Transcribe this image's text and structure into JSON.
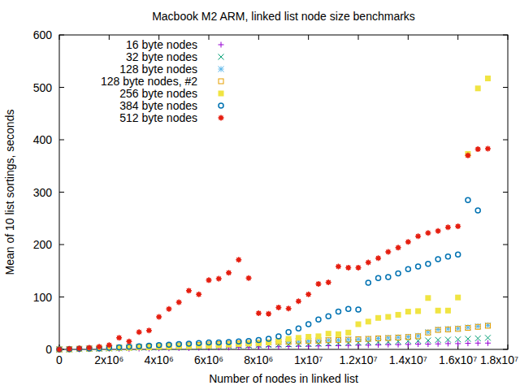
{
  "chart_data": {
    "type": "scatter",
    "title": "Macbook M2 ARM, linked list node size benchmarks",
    "x_label": "Number of nodes in linked list",
    "y_label": "Mean of 10 list sortings, seconds",
    "xlim": [
      0,
      18000000
    ],
    "ylim": [
      0,
      600
    ],
    "xticks": [
      0,
      {
        "value": 2000000,
        "label": "2x10⁶"
      },
      {
        "value": 4000000,
        "label": "4x10⁶"
      },
      {
        "value": 6000000,
        "label": "6x10⁶"
      },
      {
        "value": 8000000,
        "label": "8x10⁶"
      },
      {
        "value": 10000000,
        "label": "1x10⁷"
      },
      {
        "value": 12000000,
        "label": "1.2x10⁷"
      },
      {
        "value": 14000000,
        "label": "1.4x10⁷"
      },
      {
        "value": 16000000,
        "label": "1.6x10⁷"
      },
      {
        "value": 18000000,
        "label": "1.8x10⁷"
      }
    ],
    "yticks": [
      0,
      100,
      200,
      300,
      400,
      500,
      600
    ],
    "grid": false,
    "legend": "top-left",
    "x": [
      0,
      400000,
      800000,
      1200000,
      1600000,
      2000000,
      2400000,
      2800000,
      3200000,
      3600000,
      4000000,
      4400000,
      4800000,
      5200000,
      5600000,
      6000000,
      6400000,
      6800000,
      7200000,
      7600000,
      8000000,
      8400000,
      8800000,
      9200000,
      9600000,
      10000000,
      10400000,
      10800000,
      11200000,
      11600000,
      12000000,
      12400000,
      12800000,
      13200000,
      13600000,
      14000000,
      14400000,
      14800000,
      15200000,
      15600000,
      16000000,
      16400000,
      16800000,
      17200000
    ],
    "series": [
      {
        "name": "16 byte nodes",
        "color": "#9400d3",
        "marker": "plus",
        "values": [
          0,
          0,
          0,
          0.5,
          0.5,
          1,
          1,
          1,
          1.5,
          1.5,
          2,
          2,
          2.5,
          2.5,
          3,
          3,
          3.5,
          3.5,
          4,
          4,
          4.5,
          5,
          5,
          5.5,
          6,
          6,
          6.5,
          7,
          7,
          7.5,
          8,
          8,
          8.5,
          9,
          9,
          9.5,
          10,
          10,
          10.5,
          11,
          11,
          11.5,
          12,
          12
        ]
      },
      {
        "name": "32 byte nodes",
        "color": "#009e73",
        "marker": "cross",
        "values": [
          0,
          0,
          0.5,
          1,
          1,
          1.5,
          2,
          2.5,
          3,
          3,
          3.5,
          4,
          4.5,
          5,
          5,
          5.5,
          6,
          6.5,
          7,
          7.5,
          8,
          8.5,
          9,
          9.5,
          10,
          10.5,
          11,
          11.5,
          12,
          12.5,
          13,
          13.5,
          14,
          14.5,
          15,
          16,
          16.5,
          17,
          18,
          18.5,
          19,
          20,
          21,
          22
        ]
      },
      {
        "name": "128 byte nodes",
        "color": "#56b4e9",
        "marker": "star",
        "values": [
          0,
          0.5,
          1,
          1.5,
          2,
          3,
          3.5,
          4,
          5,
          5.5,
          6,
          7,
          7.5,
          8,
          9,
          9.5,
          10,
          11,
          11.5,
          12,
          13,
          13.5,
          14,
          15,
          15.5,
          16,
          17,
          17.5,
          18,
          19,
          19.5,
          20,
          21,
          22,
          23,
          24,
          26,
          33,
          38,
          39,
          40,
          42,
          44,
          46
        ]
      },
      {
        "name": "128 byte nodes, #2",
        "color": "#e69f00",
        "marker": "square-open",
        "values": [
          0,
          0.5,
          1,
          1.5,
          2,
          2.5,
          3.5,
          4,
          4.5,
          5.5,
          6,
          6.5,
          7.5,
          8,
          8.5,
          9.5,
          10,
          10.5,
          11.5,
          12,
          12.5,
          13.5,
          14,
          14.5,
          15.5,
          16,
          16.5,
          17.5,
          18,
          18.5,
          19.5,
          20,
          21,
          21.5,
          22.5,
          23.5,
          25,
          32,
          37,
          38,
          39,
          41,
          43,
          45
        ]
      },
      {
        "name": "256 byte nodes",
        "color": "#f0e442",
        "marker": "square",
        "values": [
          0,
          0,
          1,
          1,
          2,
          2,
          3,
          3,
          4,
          4,
          5,
          5,
          6,
          6,
          7,
          7,
          8,
          9,
          10,
          11,
          12,
          13,
          16,
          20,
          22,
          24,
          25,
          30,
          29,
          32,
          48,
          53,
          60,
          62,
          66,
          72,
          73,
          98,
          74,
          74,
          99,
          373,
          498,
          517
        ]
      },
      {
        "name": "384 byte nodes",
        "color": "#0072b2",
        "marker": "circle-open",
        "values": [
          0,
          0.5,
          1,
          1.5,
          2,
          3,
          4,
          5,
          6,
          7,
          8,
          9,
          10,
          11,
          12,
          13,
          13,
          14,
          15,
          16,
          18,
          20,
          25,
          33,
          40,
          48,
          57,
          63,
          72,
          77,
          76,
          127,
          136,
          138,
          145,
          153,
          158,
          163,
          172,
          177,
          181,
          285,
          265,
          null
        ]
      },
      {
        "name": "512 byte nodes",
        "color": "#e51e10",
        "marker": "star-filled",
        "values": [
          0,
          1,
          2,
          3,
          5,
          8,
          22,
          15,
          33,
          36,
          62,
          77,
          90,
          112,
          105,
          132,
          135,
          146,
          171,
          136,
          69,
          68,
          80,
          78,
          92,
          105,
          125,
          128,
          158,
          156,
          156,
          166,
          174,
          186,
          194,
          205,
          216,
          222,
          226,
          233,
          235,
          370,
          382,
          383
        ]
      }
    ]
  }
}
